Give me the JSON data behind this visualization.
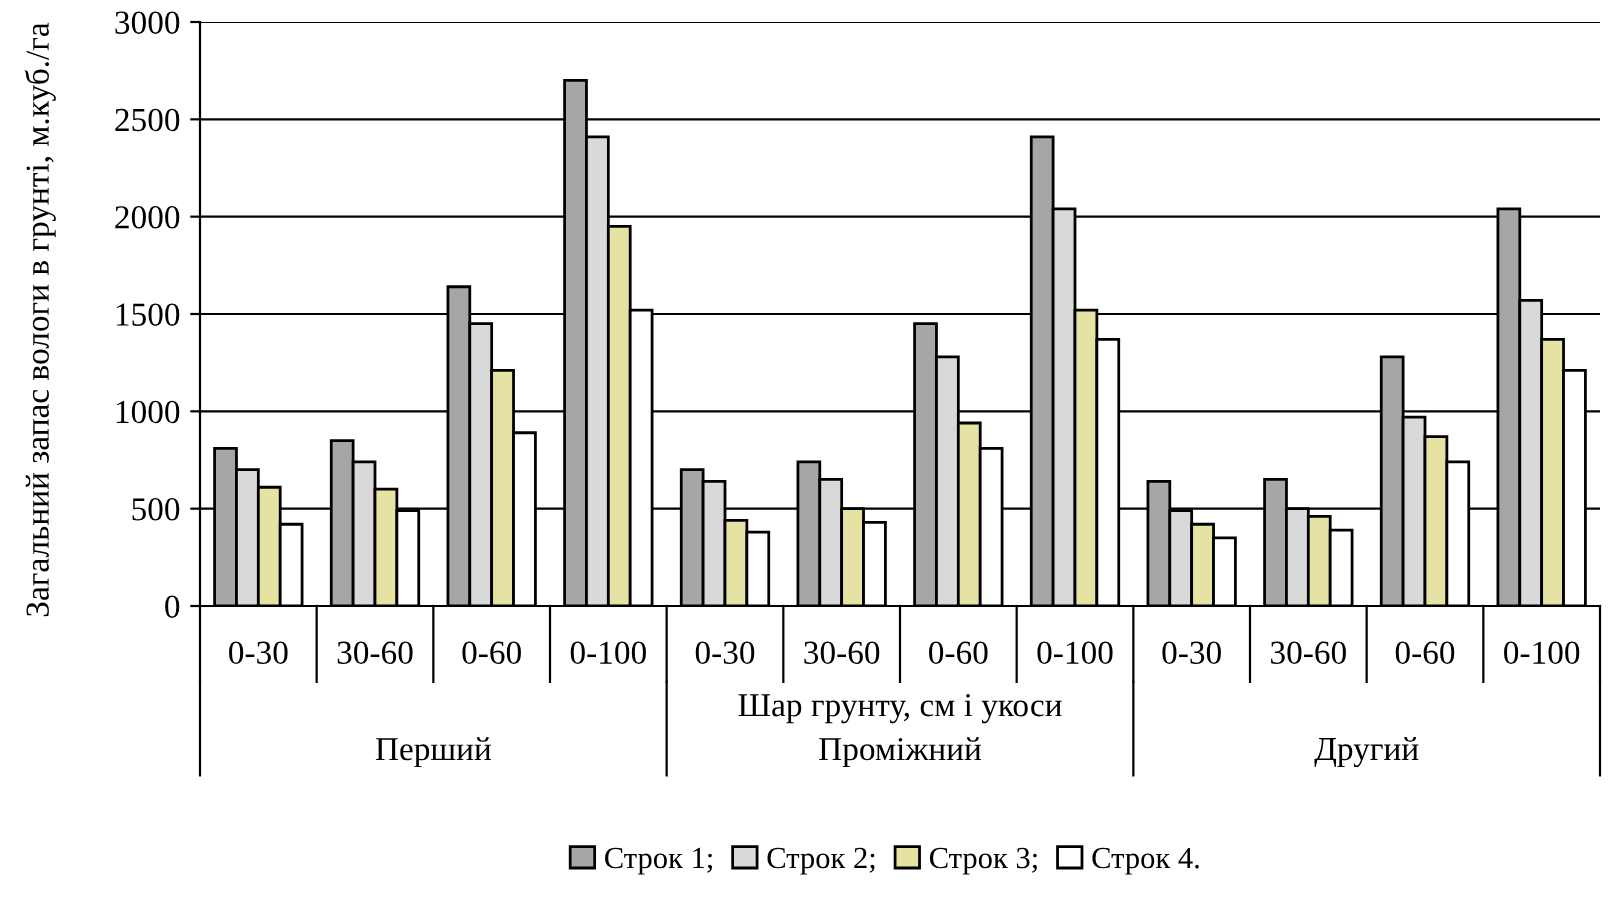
{
  "chart_data": {
    "type": "bar",
    "ylabel": "Загальний запас вологи в грунті, м.куб./га",
    "xlabel": "Шар грунту, см і укоси",
    "categories": [
      "0-30",
      "30-60",
      "0-60",
      "0-100",
      "0-30",
      "30-60",
      "0-60",
      "0-100",
      "0-30",
      "30-60",
      "0-60",
      "0-100"
    ],
    "annotations": [
      "Перший",
      "Проміжний",
      "Другий"
    ],
    "series": [
      {
        "name": "Строк 1;",
        "color": "#a6a6a6",
        "values": [
          810,
          850,
          1640,
          2700,
          700,
          740,
          1450,
          2410,
          640,
          650,
          1280,
          2040
        ]
      },
      {
        "name": "Строк 2;",
        "color": "#d9d9d9",
        "values": [
          700,
          740,
          1450,
          2410,
          640,
          650,
          1280,
          2040,
          490,
          500,
          970,
          1570
        ]
      },
      {
        "name": "Строк 3;",
        "color": "#e6e2a4",
        "values": [
          610,
          600,
          1210,
          1950,
          440,
          500,
          940,
          1520,
          420,
          460,
          870,
          1370
        ]
      },
      {
        "name": "Строк 4.",
        "color": "#ffffff",
        "values": [
          420,
          490,
          890,
          1520,
          380,
          430,
          810,
          1370,
          350,
          390,
          740,
          1210
        ]
      }
    ],
    "ylim": [
      0,
      3000
    ],
    "yticks": [
      0,
      500,
      1000,
      1500,
      2000,
      2500,
      3000
    ],
    "grid": "y",
    "legend": "bottom"
  }
}
